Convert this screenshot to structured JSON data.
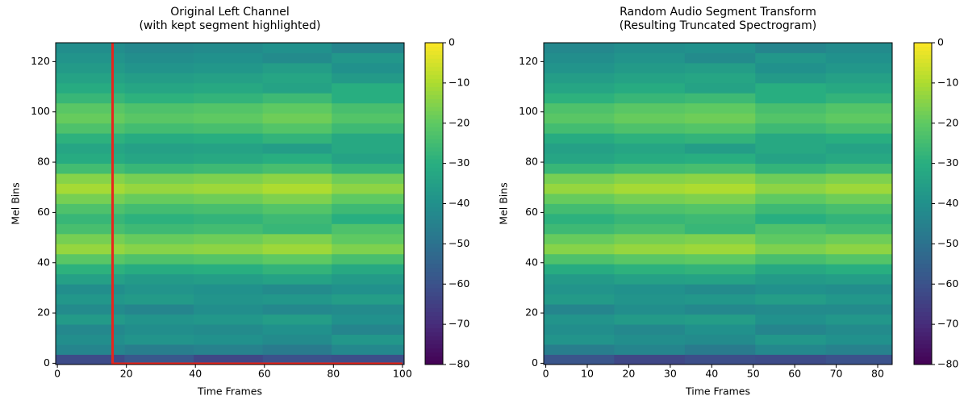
{
  "chart_data": [
    {
      "type": "heatmap",
      "title": [
        "Original Left Channel",
        "(with kept segment highlighted)"
      ],
      "xlabel": "Time Frames",
      "ylabel": "Mel Bins",
      "xlim": [
        -0.5,
        100.5
      ],
      "ylim": [
        -0.5,
        127.5
      ],
      "xticks": [
        0,
        20,
        40,
        60,
        80,
        100
      ],
      "yticks": [
        0,
        20,
        40,
        60,
        80,
        100,
        120
      ],
      "colormap": "viridis",
      "clim": [
        -80,
        0
      ],
      "cticks": [
        0,
        {
          "value": -10,
          "label": "−10"
        },
        {
          "value": -20,
          "label": "−20"
        },
        {
          "value": -30,
          "label": "−30"
        },
        {
          "value": -40,
          "label": "−40"
        },
        {
          "value": -50,
          "label": "−50"
        },
        {
          "value": -60,
          "label": "−60"
        },
        {
          "value": -70,
          "label": "−70"
        },
        {
          "value": -80,
          "label": "−80"
        }
      ],
      "highlight": {
        "x": [
          16,
          100
        ],
        "color": "#e8251c"
      },
      "x_edges": [
        -0.5,
        19.5,
        39.5,
        59.5,
        79.5,
        100.5
      ],
      "y_edges": [
        -0.5,
        3.5,
        7.5,
        11.5,
        15.5,
        19.5,
        23.5,
        27.5,
        31.5,
        35.5,
        39.5,
        43.5,
        47.5,
        51.5,
        55.5,
        59.5,
        63.5,
        67.5,
        71.5,
        75.5,
        79.5,
        83.5,
        87.5,
        91.5,
        95.5,
        99.5,
        103.5,
        107.5,
        111.5,
        115.5,
        119.5,
        123.5,
        127.5
      ],
      "z": [
        [
          -62,
          -58,
          -63,
          -60,
          -61
        ],
        [
          -44,
          -46,
          -45,
          -47,
          -43
        ],
        [
          -41,
          -39,
          -40,
          -42,
          -38
        ],
        [
          -43,
          -41,
          -42,
          -40,
          -44
        ],
        [
          -37,
          -39,
          -38,
          -36,
          -40
        ],
        [
          -42,
          -44,
          -41,
          -43,
          -42
        ],
        [
          -38,
          -37,
          -39,
          -38,
          -36
        ],
        [
          -41,
          -39,
          -40,
          -42,
          -40
        ],
        [
          -35,
          -37,
          -36,
          -34,
          -37
        ],
        [
          -29,
          -31,
          -30,
          -28,
          -32
        ],
        [
          -21,
          -23,
          -22,
          -20,
          -24
        ],
        [
          -13,
          -15,
          -14,
          -12,
          -16
        ],
        [
          -17,
          -19,
          -18,
          -16,
          -20
        ],
        [
          -24,
          -26,
          -25,
          -27,
          -23
        ],
        [
          -27,
          -29,
          -28,
          -26,
          -30
        ],
        [
          -23,
          -25,
          -24,
          -22,
          -26
        ],
        [
          -17,
          -19,
          -18,
          -16,
          -20
        ],
        [
          -11,
          -13,
          -12,
          -10,
          -14
        ],
        [
          -15,
          -17,
          -16,
          -14,
          -18
        ],
        [
          -25,
          -27,
          -26,
          -24,
          -28
        ],
        [
          -31,
          -33,
          -32,
          -30,
          -34
        ],
        [
          -33,
          -35,
          -34,
          -36,
          -32
        ],
        [
          -29,
          -31,
          -30,
          -28,
          -32
        ],
        [
          -23,
          -25,
          -24,
          -22,
          -26
        ],
        [
          -19,
          -21,
          -20,
          -18,
          -22
        ],
        [
          -21,
          -23,
          -22,
          -20,
          -24
        ],
        [
          -27,
          -29,
          -28,
          -26,
          -30
        ],
        [
          -31,
          -33,
          -32,
          -34,
          -30
        ],
        [
          -34,
          -36,
          -35,
          -33,
          -37
        ],
        [
          -37,
          -39,
          -38,
          -36,
          -40
        ],
        [
          -39,
          -41,
          -40,
          -42,
          -38
        ],
        [
          -41,
          -43,
          -42,
          -40,
          -44
        ]
      ]
    },
    {
      "type": "heatmap",
      "title": [
        "Random Audio Segment Transform",
        "(Resulting Truncated Spectrogram)"
      ],
      "xlabel": "Time Frames",
      "ylabel": "Mel Bins",
      "xlim": [
        -0.5,
        83.5
      ],
      "ylim": [
        -0.5,
        127.5
      ],
      "xticks": [
        0,
        10,
        20,
        30,
        40,
        50,
        60,
        70,
        80
      ],
      "yticks": [
        0,
        20,
        40,
        60,
        80,
        100,
        120
      ],
      "colormap": "viridis",
      "clim": [
        -80,
        0
      ],
      "cticks": [
        0,
        {
          "value": -10,
          "label": "−10"
        },
        {
          "value": -20,
          "label": "−20"
        },
        {
          "value": -30,
          "label": "−30"
        },
        {
          "value": -40,
          "label": "−40"
        },
        {
          "value": -50,
          "label": "−50"
        },
        {
          "value": -60,
          "label": "−60"
        },
        {
          "value": -70,
          "label": "−70"
        },
        {
          "value": -80,
          "label": "−80"
        }
      ],
      "x_edges": [
        -0.5,
        16.5,
        33.5,
        50.5,
        67.5,
        83.5
      ],
      "y_edges": [
        -0.5,
        3.5,
        7.5,
        11.5,
        15.5,
        19.5,
        23.5,
        27.5,
        31.5,
        35.5,
        39.5,
        43.5,
        47.5,
        51.5,
        55.5,
        59.5,
        63.5,
        67.5,
        71.5,
        75.5,
        79.5,
        83.5,
        87.5,
        91.5,
        95.5,
        99.5,
        103.5,
        107.5,
        111.5,
        115.5,
        119.5,
        123.5,
        127.5
      ],
      "z": [
        [
          -59,
          -63,
          -61,
          -62,
          -60
        ],
        [
          -46,
          -44,
          -47,
          -43,
          -45
        ],
        [
          -39,
          -41,
          -42,
          -38,
          -40
        ],
        [
          -41,
          -43,
          -40,
          -44,
          -42
        ],
        [
          -39,
          -37,
          -36,
          -40,
          -38
        ],
        [
          -44,
          -41,
          -43,
          -42,
          -42
        ],
        [
          -37,
          -39,
          -38,
          -36,
          -38
        ],
        [
          -39,
          -40,
          -42,
          -40,
          -41
        ],
        [
          -37,
          -35,
          -34,
          -37,
          -36
        ],
        [
          -31,
          -29,
          -28,
          -32,
          -30
        ],
        [
          -23,
          -21,
          -20,
          -24,
          -22
        ],
        [
          -15,
          -13,
          -12,
          -16,
          -14
        ],
        [
          -19,
          -17,
          -16,
          -20,
          -18
        ],
        [
          -26,
          -24,
          -27,
          -23,
          -25
        ],
        [
          -29,
          -27,
          -26,
          -30,
          -28
        ],
        [
          -25,
          -23,
          -22,
          -26,
          -24
        ],
        [
          -19,
          -17,
          -16,
          -20,
          -18
        ],
        [
          -13,
          -11,
          -10,
          -14,
          -12
        ],
        [
          -17,
          -15,
          -14,
          -18,
          -16
        ],
        [
          -27,
          -25,
          -24,
          -28,
          -26
        ],
        [
          -33,
          -31,
          -30,
          -34,
          -32
        ],
        [
          -35,
          -33,
          -36,
          -32,
          -34
        ],
        [
          -31,
          -29,
          -28,
          -32,
          -30
        ],
        [
          -25,
          -23,
          -22,
          -26,
          -24
        ],
        [
          -21,
          -19,
          -18,
          -22,
          -20
        ],
        [
          -23,
          -21,
          -20,
          -24,
          -22
        ],
        [
          -29,
          -27,
          -26,
          -30,
          -28
        ],
        [
          -33,
          -31,
          -34,
          -30,
          -32
        ],
        [
          -36,
          -34,
          -33,
          -37,
          -35
        ],
        [
          -39,
          -37,
          -36,
          -40,
          -38
        ],
        [
          -41,
          -39,
          -42,
          -38,
          -40
        ],
        [
          -43,
          -41,
          -40,
          -44,
          -42
        ]
      ]
    }
  ]
}
